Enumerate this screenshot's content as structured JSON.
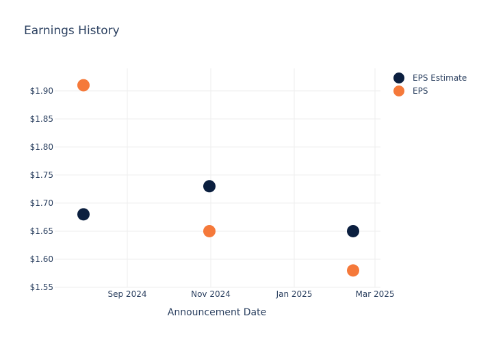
{
  "chart_data": {
    "type": "scatter",
    "title": "Earnings History",
    "xlabel": "Announcement Date",
    "ylabel": "",
    "x_type": "date",
    "xlim": [
      "2024-07-10",
      "2025-03-05"
    ],
    "ylim": [
      1.55,
      1.94
    ],
    "x_ticks": [
      {
        "value": "2024-09-01",
        "label": "Sep 2024"
      },
      {
        "value": "2024-11-01",
        "label": "Nov 2024"
      },
      {
        "value": "2025-01-01",
        "label": "Jan 2025"
      },
      {
        "value": "2025-03-01",
        "label": "Mar 2025"
      }
    ],
    "y_ticks": [
      {
        "value": 1.55,
        "label": "$1.55"
      },
      {
        "value": 1.6,
        "label": "$1.60"
      },
      {
        "value": 1.65,
        "label": "$1.65"
      },
      {
        "value": 1.7,
        "label": "$1.70"
      },
      {
        "value": 1.75,
        "label": "$1.75"
      },
      {
        "value": 1.8,
        "label": "$1.80"
      },
      {
        "value": 1.85,
        "label": "$1.85"
      },
      {
        "value": 1.9,
        "label": "$1.90"
      }
    ],
    "grid": true,
    "legend_position": "top-right",
    "series": [
      {
        "name": "EPS Estimate",
        "color": "#0b1f3f",
        "points": [
          {
            "x": "2024-07-31",
            "y": 1.68
          },
          {
            "x": "2024-10-31",
            "y": 1.73
          },
          {
            "x": "2025-02-13",
            "y": 1.65
          }
        ]
      },
      {
        "name": "EPS",
        "color": "#f5793a",
        "points": [
          {
            "x": "2024-07-31",
            "y": 1.91
          },
          {
            "x": "2024-10-31",
            "y": 1.65
          },
          {
            "x": "2025-02-13",
            "y": 1.58
          }
        ]
      }
    ]
  }
}
